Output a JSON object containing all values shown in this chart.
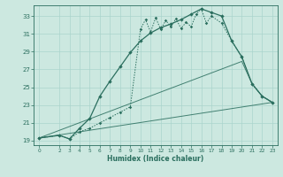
{
  "xlabel": "Humidex (Indice chaleur)",
  "bg_color": "#cce8e0",
  "grid_color": "#aad4cc",
  "line_color": "#2a6e5e",
  "xlim": [
    -0.5,
    23.5
  ],
  "ylim": [
    18.5,
    34.2
  ],
  "xticks": [
    0,
    2,
    3,
    4,
    5,
    6,
    7,
    8,
    9,
    10,
    11,
    12,
    13,
    14,
    15,
    16,
    17,
    18,
    19,
    20,
    21,
    22,
    23
  ],
  "yticks": [
    19,
    21,
    23,
    25,
    27,
    29,
    31,
    33
  ],
  "curve1_x": [
    0,
    2,
    3,
    4,
    5,
    6,
    7,
    8,
    9,
    10,
    11,
    12,
    13,
    14,
    15,
    16,
    17,
    18,
    19,
    20,
    21,
    22,
    23
  ],
  "curve1_y": [
    19.3,
    19.6,
    19.2,
    20.4,
    21.5,
    24.0,
    25.7,
    27.3,
    28.9,
    30.2,
    31.1,
    31.7,
    32.1,
    32.6,
    33.2,
    33.8,
    33.4,
    33.0,
    30.2,
    28.4,
    25.4,
    24.0,
    23.3
  ],
  "curve2_x": [
    0,
    2,
    3,
    4,
    5,
    6,
    7,
    8,
    9,
    10,
    10.5,
    11,
    11.5,
    12,
    12.5,
    13,
    13.5,
    14,
    14.5,
    15,
    15.5,
    16,
    16.5,
    17,
    18,
    19,
    20,
    21,
    22,
    23
  ],
  "curve2_y": [
    19.3,
    19.6,
    19.2,
    20.0,
    20.4,
    21.0,
    21.6,
    22.2,
    22.8,
    31.5,
    32.6,
    31.2,
    32.8,
    31.5,
    32.5,
    31.8,
    32.7,
    31.6,
    32.3,
    31.8,
    33.2,
    33.8,
    32.2,
    33.0,
    32.2,
    30.2,
    28.4,
    25.4,
    24.0,
    23.3
  ],
  "line3_x": [
    0,
    20,
    21,
    22,
    23
  ],
  "line3_y": [
    19.3,
    27.9,
    25.4,
    24.0,
    23.3
  ],
  "line4_x": [
    0,
    23
  ],
  "line4_y": [
    19.3,
    23.3
  ]
}
